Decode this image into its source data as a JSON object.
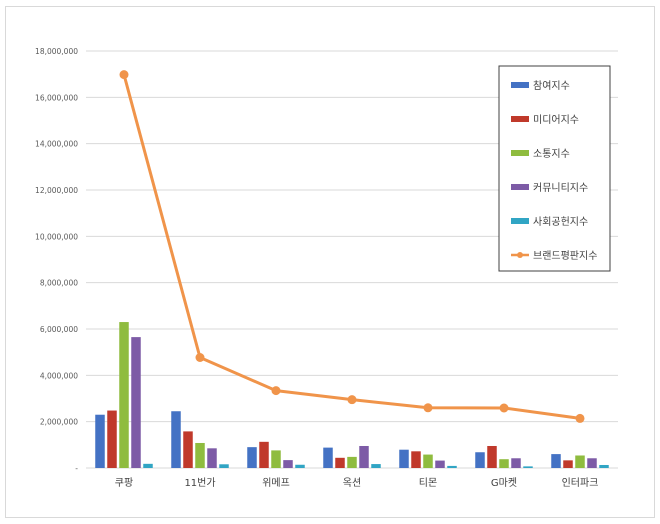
{
  "chart_data": {
    "type": "bar",
    "categories": [
      "쿠팡",
      "11번가",
      "위메프",
      "옥션",
      "티몬",
      "G마켓",
      "인터파크"
    ],
    "series": [
      {
        "name": "참여지수",
        "type": "bar",
        "color": "#4472c4",
        "values": [
          2300000,
          2450000,
          900000,
          880000,
          790000,
          680000,
          600000
        ]
      },
      {
        "name": "미디어지수",
        "type": "bar",
        "color": "#c0392b",
        "values": [
          2480000,
          1580000,
          1130000,
          440000,
          720000,
          950000,
          330000
        ]
      },
      {
        "name": "소통지수",
        "type": "bar",
        "color": "#8fbc3f",
        "values": [
          6300000,
          1080000,
          760000,
          480000,
          580000,
          380000,
          540000
        ]
      },
      {
        "name": "커뮤니티지수",
        "type": "bar",
        "color": "#7d5ba6",
        "values": [
          5650000,
          850000,
          340000,
          950000,
          320000,
          420000,
          420000
        ]
      },
      {
        "name": "사회공헌지수",
        "type": "bar",
        "color": "#31a5c4",
        "values": [
          180000,
          160000,
          140000,
          170000,
          90000,
          70000,
          130000
        ]
      },
      {
        "name": "브랜드평판지수",
        "type": "line",
        "color": "#f0944a",
        "values": [
          16980000,
          4770000,
          3340000,
          2950000,
          2600000,
          2590000,
          2140000
        ]
      }
    ],
    "ylim": [
      0,
      18000000
    ],
    "yticks": [
      "-",
      "2,000,000",
      "4,000,000",
      "6,000,000",
      "8,000,000",
      "10,000,000",
      "12,000,000",
      "14,000,000",
      "16,000,000",
      "18,000,000"
    ],
    "grid": true,
    "legend_position": "top-right"
  }
}
